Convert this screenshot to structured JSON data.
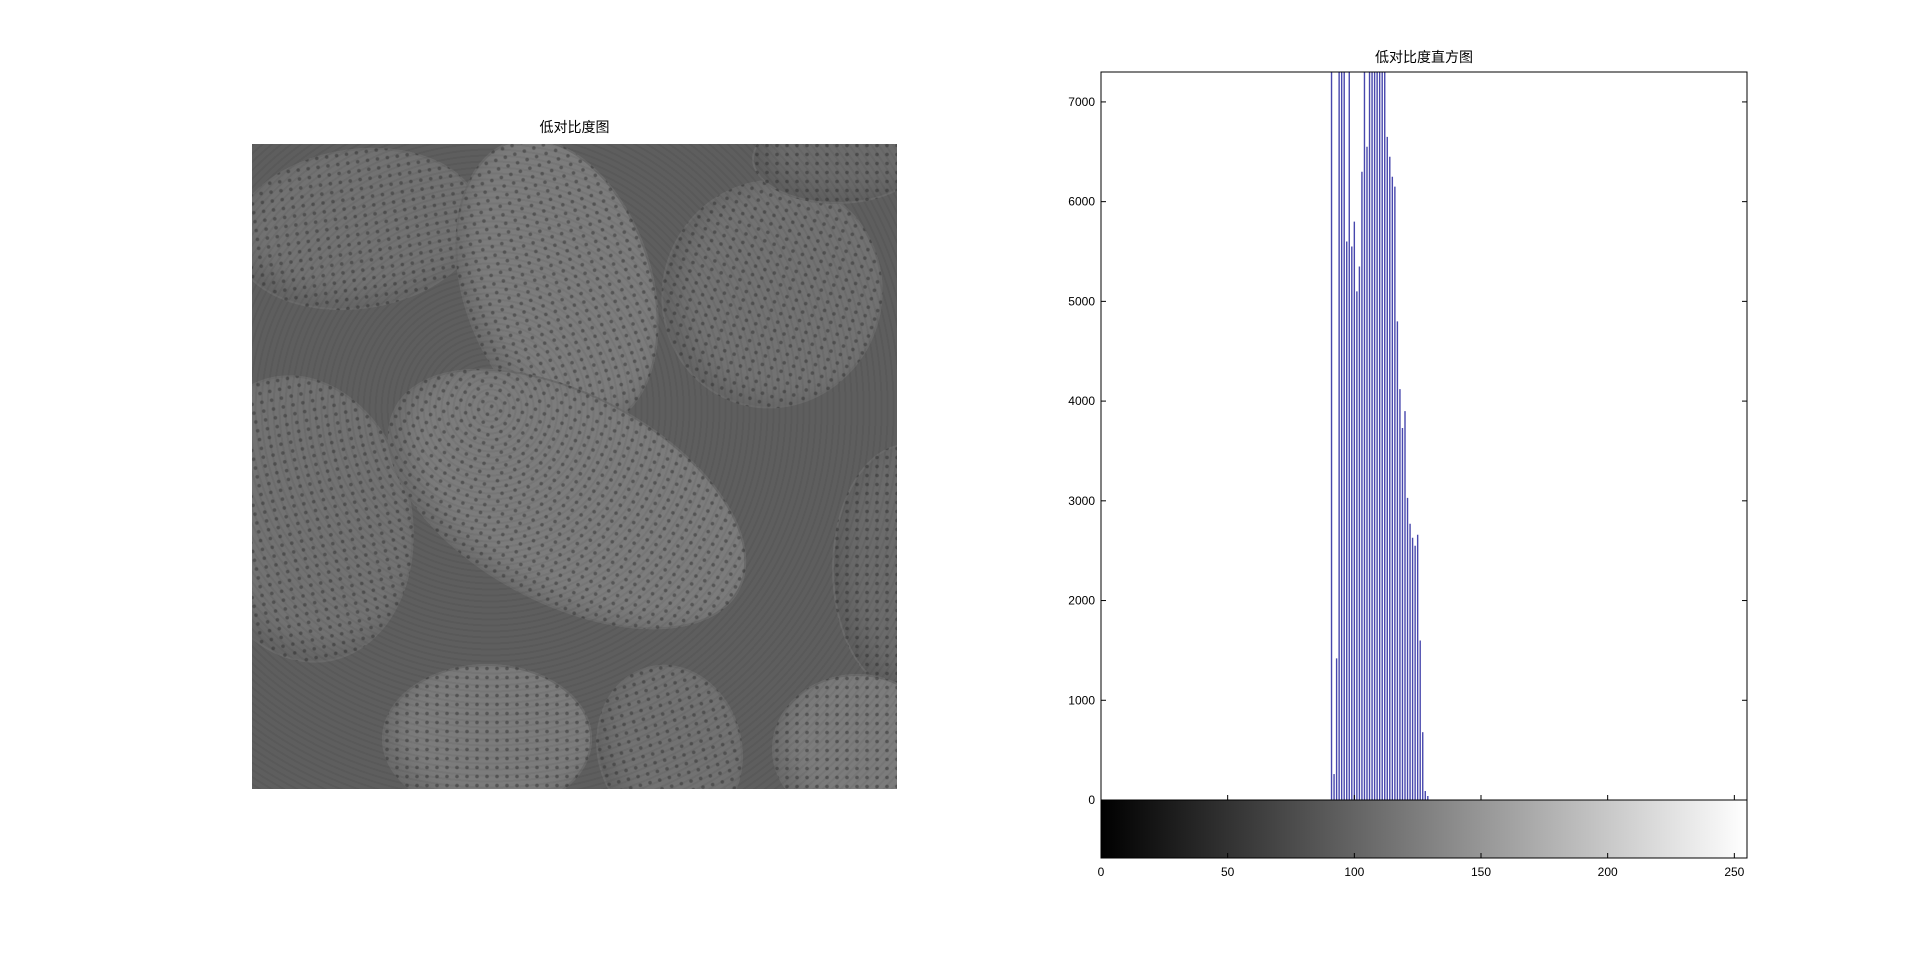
{
  "figure": {
    "left_title": "低对比度图",
    "right_title": "低对比度直方图",
    "image_alt": "pollen grains, low contrast grayscale image"
  },
  "chart_data": {
    "type": "bar",
    "title": "低对比度直方图",
    "xlabel": "",
    "ylabel": "",
    "xlim": [
      0,
      255
    ],
    "ylim": [
      0,
      7300
    ],
    "x_ticks": [
      0,
      50,
      100,
      150,
      200,
      250
    ],
    "y_ticks": [
      0,
      1000,
      2000,
      3000,
      4000,
      5000,
      6000,
      7000
    ],
    "grid": false,
    "bar_color": "#4747ad",
    "x": [
      91,
      92,
      93,
      94,
      95,
      96,
      97,
      98,
      99,
      100,
      101,
      102,
      103,
      104,
      105,
      106,
      107,
      108,
      109,
      110,
      111,
      112,
      113,
      114,
      115,
      116,
      117,
      118,
      119,
      120,
      121,
      122,
      123,
      124,
      125,
      126,
      127,
      128,
      129,
      130,
      131,
      132,
      133,
      134,
      135,
      136,
      137,
      138,
      139
    ],
    "values": [
      7300,
      260,
      1420,
      7300,
      7300,
      7300,
      5600,
      7300,
      5550,
      5800,
      5100,
      5350,
      6300,
      7300,
      6550,
      7300,
      7300,
      7300,
      7300,
      7300,
      7300,
      7300,
      6650,
      6450,
      6250,
      6150,
      4800,
      4120,
      3730,
      3900,
      3030,
      2770,
      2630,
      2550,
      2660,
      1600,
      680,
      90,
      40,
      0,
      0,
      0,
      0,
      0,
      0,
      0,
      0,
      0,
      0
    ],
    "colorbar": {
      "from": "#000000",
      "to": "#ffffff",
      "range": [
        0,
        255
      ]
    }
  }
}
